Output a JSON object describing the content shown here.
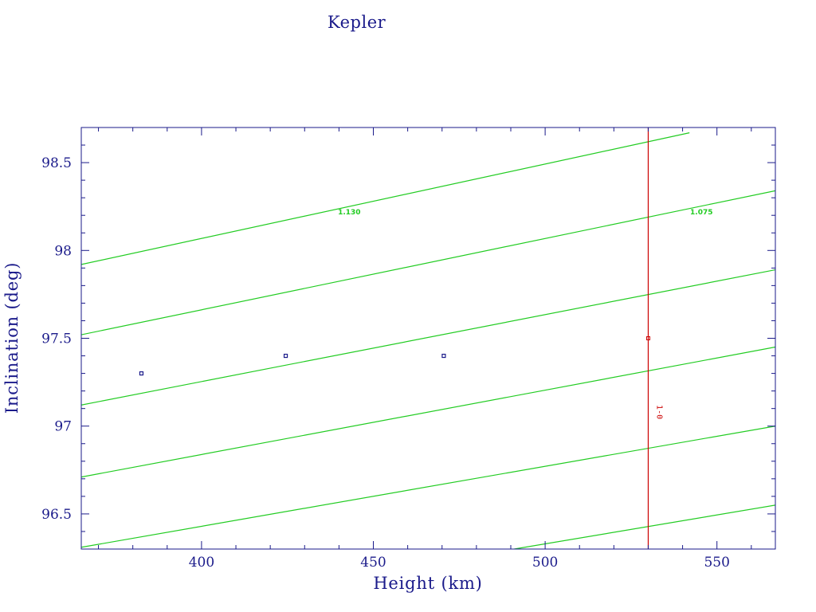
{
  "chart_data": {
    "type": "scatter",
    "title": "Kepler",
    "xlabel": "Height (km)",
    "ylabel": "Inclination (deg)",
    "xlim": [
      365,
      567
    ],
    "ylim": [
      96.3,
      98.7
    ],
    "x_ticks": [
      400,
      450,
      500,
      550
    ],
    "y_ticks": [
      96.5,
      97,
      97.5,
      98,
      98.5
    ],
    "grid": false,
    "points": [
      {
        "x": 382.5,
        "y": 97.3
      },
      {
        "x": 424.5,
        "y": 97.4
      },
      {
        "x": 470.5,
        "y": 97.4
      }
    ],
    "highlight_point": {
      "x": 530,
      "y": 97.5
    },
    "vertical_marker": {
      "x": 530,
      "label": "1-0"
    },
    "contour_lines": [
      {
        "x": [
          365,
          542
        ],
        "y": [
          97.92,
          98.67
        ]
      },
      {
        "x": [
          365,
          567
        ],
        "y": [
          97.52,
          98.34
        ]
      },
      {
        "x": [
          365,
          567
        ],
        "y": [
          97.12,
          97.89
        ]
      },
      {
        "x": [
          365,
          567
        ],
        "y": [
          96.71,
          97.45
        ]
      },
      {
        "x": [
          365,
          567
        ],
        "y": [
          96.31,
          97.0
        ]
      },
      {
        "x": [
          491,
          567
        ],
        "y": [
          96.3,
          96.55
        ]
      }
    ],
    "contour_labels": [
      {
        "text": "1.130",
        "x": 443,
        "y": 98.22
      },
      {
        "text": "1.075",
        "x": 545.5,
        "y": 98.22
      }
    ],
    "colors": {
      "axis": "#1a1a8a",
      "contour": "#22cc22",
      "marker": "#cc0000",
      "points": "#1a1a8a"
    }
  }
}
